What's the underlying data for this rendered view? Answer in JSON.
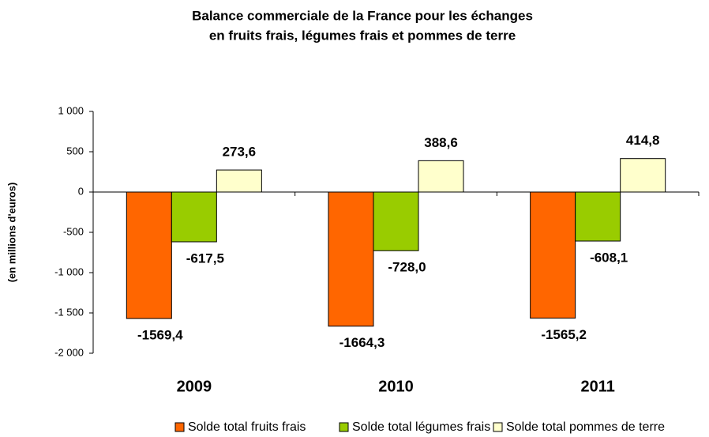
{
  "chart_data": {
    "type": "bar",
    "title": [
      "Balance commerciale de la France pour les échanges",
      "en fruits frais, légumes frais et pommes de terre"
    ],
    "y_label": "(en millions d'euros)",
    "categories": [
      "2009",
      "2010",
      "2011"
    ],
    "series": [
      {
        "name": "Solde total fruits frais",
        "color": "#ff6600",
        "values": [
          -1569.4,
          -1664.3,
          -1565.2
        ],
        "value_labels": [
          "-1569,4",
          "-1664,3",
          "-1565,2"
        ]
      },
      {
        "name": "Solde total légumes frais",
        "color": "#99cc00",
        "values": [
          -617.5,
          -728.0,
          -608.1
        ],
        "value_labels": [
          "-617,5",
          "-728,0",
          "-608,1"
        ]
      },
      {
        "name": "Solde total pommes de terre",
        "color": "#ffffcc",
        "values": [
          273.6,
          388.6,
          414.8
        ],
        "value_labels": [
          "273,6",
          "388,6",
          "414,8"
        ]
      }
    ],
    "ylim": [
      -2000,
      1000
    ],
    "yticks": [
      {
        "value": -2000,
        "label": "-2 000"
      },
      {
        "value": -1500,
        "label": "-1 500"
      },
      {
        "value": -1000,
        "label": "-1 000"
      },
      -500,
      0,
      500,
      {
        "value": 1000,
        "label": "1 000"
      }
    ],
    "legend": "bottom"
  }
}
